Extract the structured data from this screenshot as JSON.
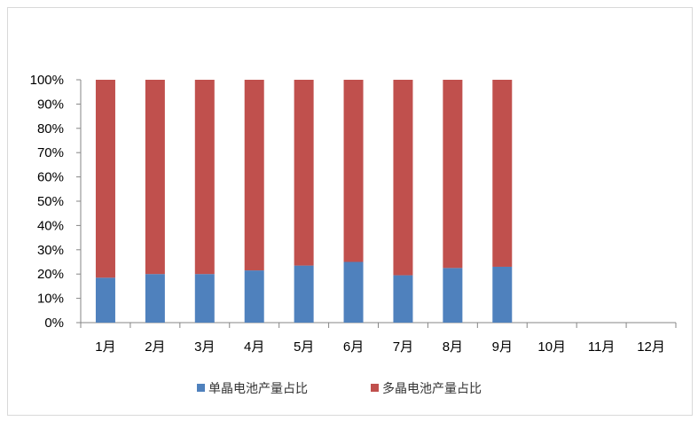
{
  "chart_data": {
    "type": "bar",
    "stacked": true,
    "categories": [
      "1月",
      "2月",
      "3月",
      "4月",
      "5月",
      "6月",
      "7月",
      "8月",
      "9月",
      "10月",
      "11月",
      "12月"
    ],
    "y_ticks": [
      "0%",
      "10%",
      "20%",
      "30%",
      "40%",
      "50%",
      "60%",
      "70%",
      "80%",
      "90%",
      "100%"
    ],
    "ylim": [
      0,
      100
    ],
    "grid": false,
    "legend_position": "bottom",
    "series": [
      {
        "name": "单晶电池产量占比",
        "color": "#4f81bd",
        "values": [
          18.5,
          20,
          20,
          21.5,
          23.5,
          25,
          19.5,
          22.5,
          23,
          null,
          null,
          null
        ]
      },
      {
        "name": "多晶电池产量占比",
        "color": "#c0504d",
        "values": [
          81.5,
          80,
          80,
          78.5,
          76.5,
          75,
          80.5,
          77.5,
          77,
          null,
          null,
          null
        ]
      }
    ]
  }
}
